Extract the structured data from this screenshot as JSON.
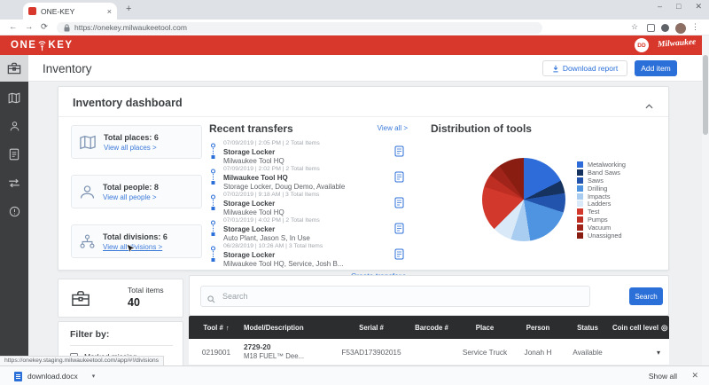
{
  "browser": {
    "tab_title": "ONE-KEY",
    "url": "https://onekey.milwaukeetool.com",
    "status_url": "https://onekey.staging.milwaukeetool.com/app/#!/divisions",
    "download_bar": {
      "file": "download.docx",
      "show_all": "Show all"
    }
  },
  "icons": {
    "back": "←",
    "forward": "→",
    "reload": "⟳",
    "star": "☆",
    "menu_dots": "⋮",
    "minimize": "–",
    "maximize": "□",
    "close": "✕",
    "new_tab": "+",
    "tab_close": "×",
    "sort_asc": "↑",
    "coin_cell": "◎",
    "row_caret": "▾",
    "dl_caret": "▾"
  },
  "app_header": {
    "logo_one": "ONE",
    "logo_key": "KEY",
    "avatar_initials": "DD",
    "brand": "Milwaukee"
  },
  "page": {
    "title": "Inventory",
    "download_report": "Download report",
    "add_item": "Add item"
  },
  "dashboard": {
    "title": "Inventory dashboard",
    "stats": [
      {
        "label": "Total places: 6",
        "link": "View all places >"
      },
      {
        "label": "Total people: 8",
        "link": "View all people >"
      },
      {
        "label": "Total divisions: 6",
        "link": "View all divisions >"
      }
    ],
    "transfers_title": "Recent transfers",
    "view_all": "View all >",
    "transfers": [
      {
        "meta": "07/09/2019 | 2:05 PM | 2 Total Items",
        "from": "Storage Locker",
        "to": "Milwaukee Tool HQ"
      },
      {
        "meta": "07/09/2019 | 2:02 PM | 2 Total Items",
        "from": "Milwaukee Tool HQ",
        "to": "Storage Locker, Doug Demo, Available"
      },
      {
        "meta": "07/02/2019 | 9:18 AM | 3 Total Items",
        "from": "Storage Locker",
        "to": "Milwaukee Tool HQ"
      },
      {
        "meta": "07/01/2019 | 4:02 PM | 2 Total Items",
        "from": "Storage Locker",
        "to": "Auto Plant, Jason S, In Use"
      },
      {
        "meta": "06/28/2019 | 10:26 AM | 3 Total Items",
        "from": "Storage Locker",
        "to": "Milwaukee Tool HQ, Service, Josh B..."
      }
    ],
    "create_transfer": "Create transfer >",
    "distribution_title": "Distribution of tools"
  },
  "chart_data": {
    "type": "pie",
    "title": "Distribution of tools",
    "labels": [
      "Metalworking",
      "Band Saws",
      "Saws",
      "Drilling",
      "Impacts",
      "Ladders",
      "Test",
      "Pumps",
      "Vacuum",
      "Unassigned"
    ],
    "values": [
      7,
      2,
      3,
      7,
      3,
      3,
      7,
      2,
      2,
      4
    ],
    "total": 40,
    "colors": [
      "#2e6cd9",
      "#16335f",
      "#2253ad",
      "#4f94e0",
      "#a9cdf0",
      "#d9e9f8",
      "#d2382c",
      "#bf2e23",
      "#a0241a",
      "#8a1d12"
    ],
    "legend_position": "right"
  },
  "inventory": {
    "total_items_label": "Total items",
    "total_items_value": "40",
    "search_placeholder": "Search",
    "search_button": "Search",
    "filter_title": "Filter by:",
    "filters": [
      {
        "label": "Marked missing",
        "checked": false
      }
    ]
  },
  "table": {
    "headers": [
      "Tool #",
      "Model/Description",
      "Serial #",
      "Barcode #",
      "Place",
      "Person",
      "Status",
      "Coin cell level"
    ],
    "rows": [
      {
        "tool": "0219001",
        "model": "2729-20",
        "description": "M18 FUEL™ Dee...",
        "serial": "F53AD173902015",
        "barcode": "",
        "place": "Service Truck",
        "person": "Jonah H",
        "status": "Available"
      }
    ]
  }
}
